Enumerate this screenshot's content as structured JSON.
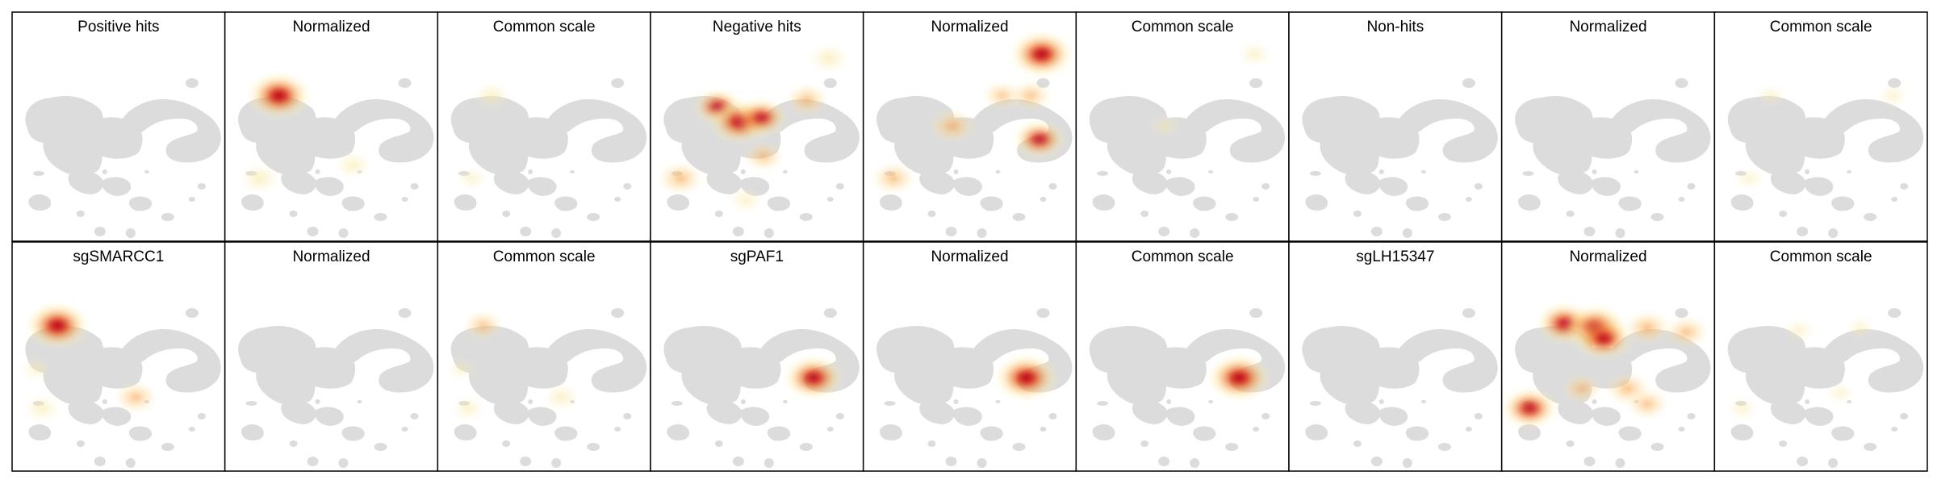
{
  "chart_data": {
    "type": "heatmap",
    "panels": [
      {
        "title": "Positive hits",
        "hotspots": []
      },
      {
        "title": "Normalized",
        "hotspots": [
          {
            "x": -2.4,
            "y": 2.5,
            "intensity": 1.0
          },
          {
            "x": -3.3,
            "y": -1.3,
            "intensity": 0.25
          },
          {
            "x": 1.0,
            "y": -0.7,
            "intensity": 0.2
          }
        ]
      },
      {
        "title": "Common scale",
        "hotspots": [
          {
            "x": -2.4,
            "y": 2.5,
            "intensity": 0.2
          },
          {
            "x": -3.3,
            "y": -1.3,
            "intensity": 0.1
          }
        ]
      },
      {
        "title": "Negative hits",
        "hotspots": [
          {
            "x": -1.8,
            "y": 2.0,
            "intensity": 0.6
          },
          {
            "x": -0.8,
            "y": 1.3,
            "intensity": 0.9
          },
          {
            "x": 0.2,
            "y": 1.5,
            "intensity": 0.7
          },
          {
            "x": 2.3,
            "y": 2.3,
            "intensity": 0.45
          },
          {
            "x": -3.5,
            "y": -1.3,
            "intensity": 0.5
          },
          {
            "x": 0.3,
            "y": -0.3,
            "intensity": 0.35
          },
          {
            "x": 3.3,
            "y": 4.2,
            "intensity": 0.25
          },
          {
            "x": -0.5,
            "y": -2.3,
            "intensity": 0.15
          }
        ]
      },
      {
        "title": "Normalized",
        "hotspots": [
          {
            "x": 3.3,
            "y": 4.4,
            "intensity": 1.0
          },
          {
            "x": -0.8,
            "y": 1.1,
            "intensity": 0.55
          },
          {
            "x": 3.2,
            "y": 0.5,
            "intensity": 0.7
          },
          {
            "x": -3.5,
            "y": -1.3,
            "intensity": 0.45
          },
          {
            "x": 2.8,
            "y": 2.5,
            "intensity": 0.4
          },
          {
            "x": 1.5,
            "y": 2.5,
            "intensity": 0.3
          }
        ]
      },
      {
        "title": "Common scale",
        "hotspots": [
          {
            "x": 3.3,
            "y": 4.4,
            "intensity": 0.15
          },
          {
            "x": -0.8,
            "y": 1.1,
            "intensity": 0.1
          }
        ]
      },
      {
        "title": "Non-hits",
        "hotspots": []
      },
      {
        "title": "Normalized",
        "hotspots": []
      },
      {
        "title": "Common scale",
        "hotspots": [
          {
            "x": 3.3,
            "y": 2.5,
            "intensity": 0.1
          },
          {
            "x": -3.3,
            "y": -1.3,
            "intensity": 0.1
          },
          {
            "x": -2.3,
            "y": 2.5,
            "intensity": 0.08
          }
        ]
      },
      {
        "title": "sgSMARCC1",
        "hotspots": [
          {
            "x": -2.8,
            "y": 2.5,
            "intensity": 1.0
          },
          {
            "x": 0.8,
            "y": -0.8,
            "intensity": 0.45
          },
          {
            "x": -3.5,
            "y": -1.3,
            "intensity": 0.2
          },
          {
            "x": -3.8,
            "y": 0.5,
            "intensity": 0.1
          }
        ]
      },
      {
        "title": "Normalized",
        "hotspots": []
      },
      {
        "title": "Common scale",
        "hotspots": [
          {
            "x": -2.8,
            "y": 2.5,
            "intensity": 0.35
          },
          {
            "x": 0.8,
            "y": -0.8,
            "intensity": 0.2
          },
          {
            "x": -3.5,
            "y": -1.3,
            "intensity": 0.15
          },
          {
            "x": -3.8,
            "y": 0.5,
            "intensity": 0.08
          }
        ]
      },
      {
        "title": "sgPAF1",
        "hotspots": [
          {
            "x": 2.6,
            "y": 0.1,
            "intensity": 0.9
          }
        ]
      },
      {
        "title": "Normalized",
        "hotspots": [
          {
            "x": 2.6,
            "y": 0.1,
            "intensity": 1.0
          }
        ]
      },
      {
        "title": "Common scale",
        "hotspots": [
          {
            "x": 2.6,
            "y": 0.1,
            "intensity": 1.0
          }
        ]
      },
      {
        "title": "sgLH15347",
        "hotspots": []
      },
      {
        "title": "Normalized",
        "hotspots": [
          {
            "x": -2.0,
            "y": 2.6,
            "intensity": 0.8
          },
          {
            "x": -0.6,
            "y": 2.4,
            "intensity": 0.95
          },
          {
            "x": -0.2,
            "y": 1.9,
            "intensity": 0.85
          },
          {
            "x": 1.8,
            "y": 2.4,
            "intensity": 0.55
          },
          {
            "x": 3.6,
            "y": 2.2,
            "intensity": 0.45
          },
          {
            "x": -3.6,
            "y": -1.3,
            "intensity": 0.8
          },
          {
            "x": -1.2,
            "y": -0.4,
            "intensity": 0.35
          },
          {
            "x": 0.9,
            "y": -0.4,
            "intensity": 0.5
          },
          {
            "x": 1.8,
            "y": -1.1,
            "intensity": 0.4
          }
        ]
      },
      {
        "title": "Common scale",
        "hotspots": [
          {
            "x": -1.0,
            "y": 2.3,
            "intensity": 0.12
          },
          {
            "x": 1.8,
            "y": 2.4,
            "intensity": 0.08
          },
          {
            "x": -3.6,
            "y": -1.3,
            "intensity": 0.1
          },
          {
            "x": 0.9,
            "y": -0.6,
            "intensity": 0.08
          }
        ]
      }
    ]
  },
  "colors": {
    "background_cells": "#dcdcdc",
    "density_low": "#fdf3b0",
    "density_mid": "#f08a3c",
    "density_high": "#c00d1c",
    "frame": "#000000"
  }
}
